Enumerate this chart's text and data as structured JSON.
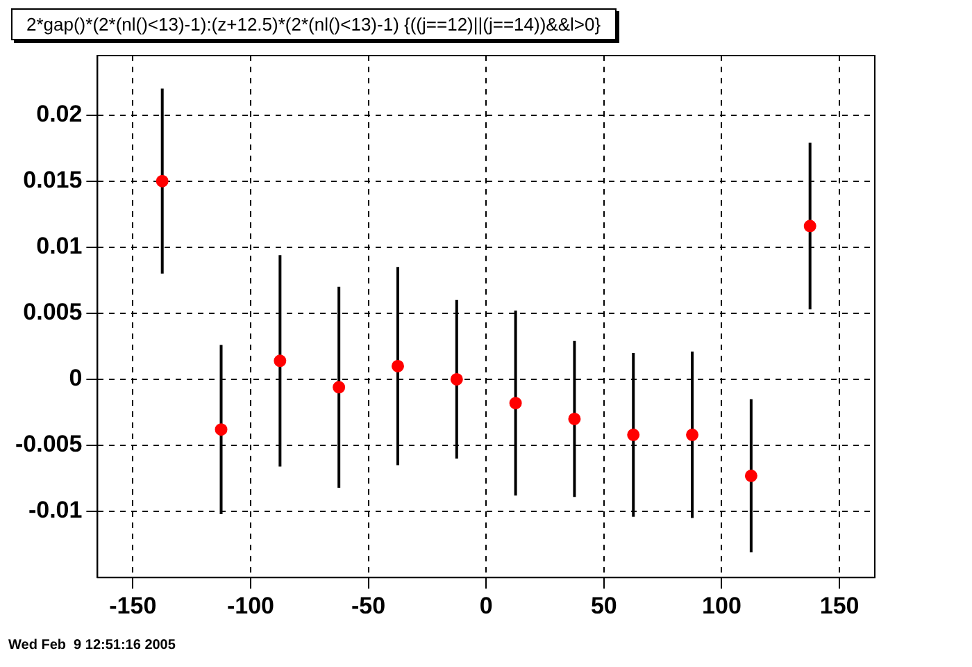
{
  "chart_data": {
    "type": "scatter",
    "title": "2*gap()*(2*(nl()<13)-1):(z+12.5)*(2*(nl()<13)-1) {((j==12)||(j==14))&&l>0}",
    "x": [
      -137.5,
      -112.5,
      -87.5,
      -62.5,
      -37.5,
      -12.5,
      12.5,
      37.5,
      62.5,
      87.5,
      112.5,
      137.5
    ],
    "series": [
      {
        "color": "#ff0000",
        "values": [
          0.015,
          -0.0038,
          0.0014,
          -0.0006,
          0.001,
          0.0,
          -0.0018,
          -0.003,
          -0.0042,
          -0.0042,
          -0.0073,
          0.0116
        ],
        "errors": [
          0.007,
          0.0064,
          0.008,
          0.0076,
          0.0075,
          0.006,
          0.007,
          0.0059,
          0.0062,
          0.0063,
          0.0058,
          0.0063
        ]
      }
    ],
    "xlim": [
      -165,
      165
    ],
    "xticks": [
      -150,
      -100,
      -50,
      0,
      50,
      100,
      150
    ],
    "ylim": [
      -0.015,
      0.0245
    ],
    "yticks": [
      -0.01,
      -0.005,
      0,
      0.005,
      0.01,
      0.015,
      0.02
    ],
    "grid": true,
    "marker": "circle",
    "legend": false,
    "annotations": [
      "Wed Feb  9 12:51:16 2005"
    ]
  }
}
